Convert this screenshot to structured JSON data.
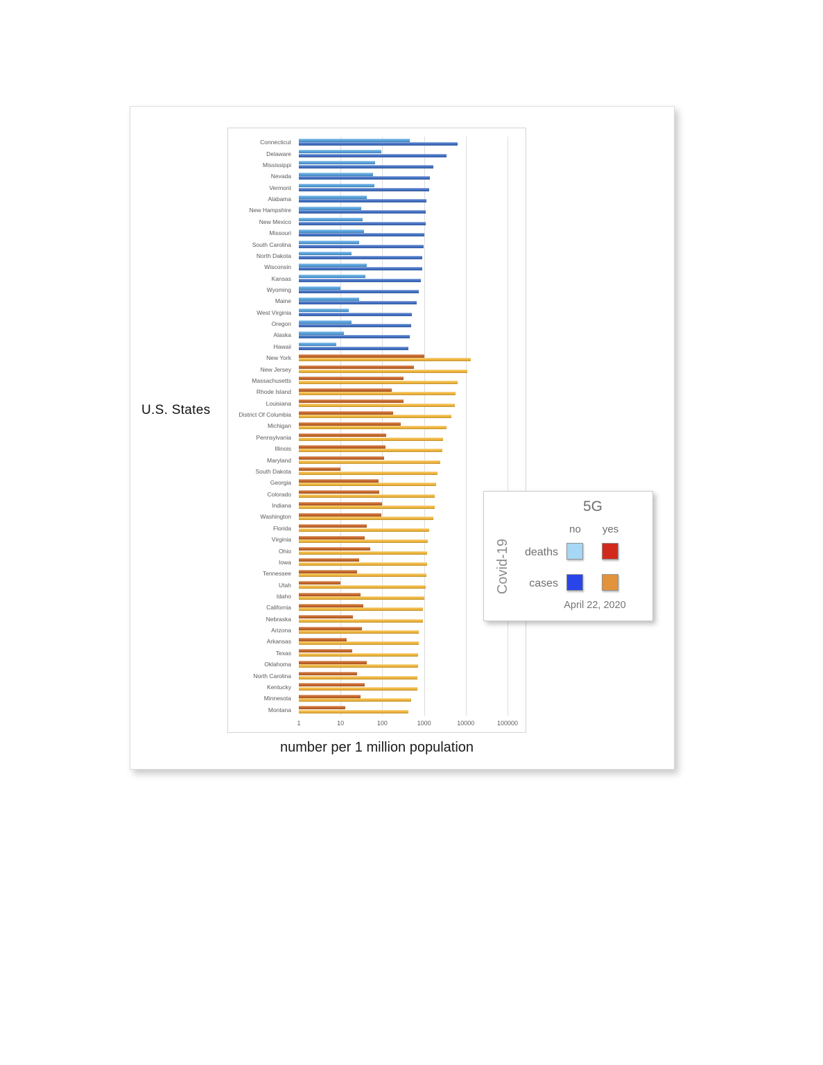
{
  "page": {
    "ylabel": "U.S. States",
    "xlabel": "number per 1 million population"
  },
  "legend": {
    "title": "5G",
    "col_no": "no",
    "col_yes": "yes",
    "row_deaths": "deaths",
    "row_cases": "cases",
    "axis_label": "Covid-19",
    "date": "April 22, 2020",
    "swatches": {
      "deaths_no": "#a6d7f5",
      "deaths_yes": "#d2291d",
      "cases_no": "#2945ea",
      "cases_yes": "#e2933c"
    }
  },
  "chart_data": {
    "type": "bar",
    "orientation": "horizontal",
    "x_scale": "log",
    "x_range": [
      1,
      100000
    ],
    "x_ticks": [
      "1",
      "10",
      "100",
      "1000",
      "10000",
      "100000"
    ],
    "xlabel": "number per 1 million population",
    "ylabel": "U.S. States",
    "date": "April 22, 2020",
    "unit": "per 1 million population",
    "grid": true,
    "series_colors": {
      "no": {
        "deaths": "#58a3de",
        "cases": "#4472c4"
      },
      "yes": {
        "deaths": "#c8692c",
        "cases": "#f0b73e"
      }
    },
    "series": [
      {
        "state": "Connecticut",
        "g5": "no",
        "deaths": 450,
        "cases": 6300
      },
      {
        "state": "Delaware",
        "g5": "no",
        "deaths": 95,
        "cases": 3400
      },
      {
        "state": "Mississippi",
        "g5": "no",
        "deaths": 66,
        "cases": 1640
      },
      {
        "state": "Nevada",
        "g5": "no",
        "deaths": 60,
        "cases": 1400
      },
      {
        "state": "Vermont",
        "g5": "no",
        "deaths": 64,
        "cases": 1350
      },
      {
        "state": "Alabama",
        "g5": "no",
        "deaths": 42,
        "cases": 1150
      },
      {
        "state": "New Hampshire",
        "g5": "no",
        "deaths": 31,
        "cases": 1110
      },
      {
        "state": "New Mexico",
        "g5": "no",
        "deaths": 34,
        "cases": 1080
      },
      {
        "state": "Missouri",
        "g5": "no",
        "deaths": 37,
        "cases": 1030
      },
      {
        "state": "South Carolina",
        "g5": "no",
        "deaths": 28,
        "cases": 990
      },
      {
        "state": "North Dakota",
        "g5": "no",
        "deaths": 18,
        "cases": 920
      },
      {
        "state": "Wisconsin",
        "g5": "no",
        "deaths": 42,
        "cases": 895
      },
      {
        "state": "Kansas",
        "g5": "no",
        "deaths": 39,
        "cases": 840
      },
      {
        "state": "Wyoming",
        "g5": "no",
        "deaths": 10,
        "cases": 760
      },
      {
        "state": "Maine",
        "g5": "no",
        "deaths": 28,
        "cases": 665
      },
      {
        "state": "West Virginia",
        "g5": "no",
        "deaths": 16,
        "cases": 515
      },
      {
        "state": "Oregon",
        "g5": "no",
        "deaths": 18,
        "cases": 500
      },
      {
        "state": "Alaska",
        "g5": "no",
        "deaths": 12,
        "cases": 450
      },
      {
        "state": "Hawaii",
        "g5": "no",
        "deaths": 8,
        "cases": 425
      },
      {
        "state": "New York",
        "g5": "yes",
        "deaths": 1000,
        "cases": 13200
      },
      {
        "state": "New Jersey",
        "g5": "yes",
        "deaths": 570,
        "cases": 10900
      },
      {
        "state": "Massachusetts",
        "g5": "yes",
        "deaths": 320,
        "cases": 6250
      },
      {
        "state": "Rhode Island",
        "g5": "yes",
        "deaths": 170,
        "cases": 5600
      },
      {
        "state": "Louisiana",
        "g5": "yes",
        "deaths": 320,
        "cases": 5380
      },
      {
        "state": "District Of Columbia",
        "g5": "yes",
        "deaths": 185,
        "cases": 4600
      },
      {
        "state": "Michigan",
        "g5": "yes",
        "deaths": 280,
        "cases": 3450
      },
      {
        "state": "Pennsylvania",
        "g5": "yes",
        "deaths": 126,
        "cases": 2800
      },
      {
        "state": "Illinois",
        "g5": "yes",
        "deaths": 121,
        "cases": 2730
      },
      {
        "state": "Maryland",
        "g5": "yes",
        "deaths": 112,
        "cases": 2460
      },
      {
        "state": "South Dakota",
        "g5": "yes",
        "deaths": 10,
        "cases": 2100
      },
      {
        "state": "Georgia",
        "g5": "yes",
        "deaths": 80,
        "cases": 1980
      },
      {
        "state": "Colorado",
        "g5": "yes",
        "deaths": 86,
        "cases": 1830
      },
      {
        "state": "Indiana",
        "g5": "yes",
        "deaths": 99,
        "cases": 1820
      },
      {
        "state": "Washington",
        "g5": "yes",
        "deaths": 95,
        "cases": 1640
      },
      {
        "state": "Florida",
        "g5": "yes",
        "deaths": 42,
        "cases": 1330
      },
      {
        "state": "Virginia",
        "g5": "yes",
        "deaths": 38,
        "cases": 1210
      },
      {
        "state": "Ohio",
        "g5": "yes",
        "deaths": 51,
        "cases": 1190
      },
      {
        "state": "Iowa",
        "g5": "yes",
        "deaths": 28,
        "cases": 1185
      },
      {
        "state": "Tennessee",
        "g5": "yes",
        "deaths": 25,
        "cases": 1150
      },
      {
        "state": "Utah",
        "g5": "yes",
        "deaths": 10,
        "cases": 1090
      },
      {
        "state": "Idaho",
        "g5": "yes",
        "deaths": 30,
        "cases": 1010
      },
      {
        "state": "California",
        "g5": "yes",
        "deaths": 35,
        "cases": 950
      },
      {
        "state": "Nebraska",
        "g5": "yes",
        "deaths": 20,
        "cases": 940
      },
      {
        "state": "Arizona",
        "g5": "yes",
        "deaths": 32,
        "cases": 760
      },
      {
        "state": "Arkansas",
        "g5": "yes",
        "deaths": 14,
        "cases": 755
      },
      {
        "state": "Texas",
        "g5": "yes",
        "deaths": 19,
        "cases": 725
      },
      {
        "state": "Oklahoma",
        "g5": "yes",
        "deaths": 42,
        "cases": 720
      },
      {
        "state": "North Carolina",
        "g5": "yes",
        "deaths": 25,
        "cases": 700
      },
      {
        "state": "Kentucky",
        "g5": "yes",
        "deaths": 38,
        "cases": 695
      },
      {
        "state": "Minnesota",
        "g5": "yes",
        "deaths": 30,
        "cases": 490
      },
      {
        "state": "Montana",
        "g5": "yes",
        "deaths": 13,
        "cases": 415
      }
    ]
  }
}
